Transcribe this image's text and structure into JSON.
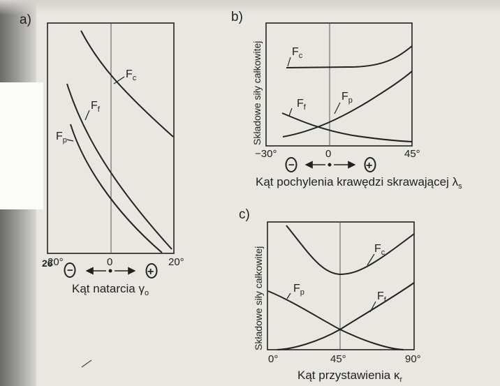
{
  "panels": {
    "a": {
      "label": "a)",
      "x_ticks": [
        "20°",
        "0",
        "20°"
      ],
      "x_tick_overprint": "26",
      "x_axis_label": "Kąt natarcia γ",
      "x_axis_label_sub": "o",
      "sign_minus": "−",
      "sign_plus": "+",
      "curves": [
        {
          "name": "F",
          "sub": "c"
        },
        {
          "name": "F",
          "sub": "f"
        },
        {
          "name": "F",
          "sub": "p"
        }
      ]
    },
    "b": {
      "label": "b)",
      "y_axis_label": "Składowe siły całkowitej",
      "x_ticks": [
        "−30°",
        "0",
        "45°"
      ],
      "x_axis_label": "Kąt pochylenia krawędzi skrawającej λ",
      "x_axis_label_sub": "s",
      "sign_minus": "−",
      "sign_plus": "+",
      "curves": [
        {
          "name": "F",
          "sub": "c"
        },
        {
          "name": "F",
          "sub": "f"
        },
        {
          "name": "F",
          "sub": "p"
        }
      ]
    },
    "c": {
      "label": "c)",
      "y_axis_label": "Składowe siły całkowitej",
      "x_ticks": [
        "0°",
        "45°",
        "90°"
      ],
      "x_axis_label": "Kąt przystawienia κ",
      "x_axis_label_sub": "r",
      "curves": [
        {
          "name": "F",
          "sub": "c"
        },
        {
          "name": "F",
          "sub": "p"
        },
        {
          "name": "F",
          "sub": "f"
        }
      ]
    }
  },
  "colors": {
    "ink": "#222222",
    "paper": "#e9e7e0"
  }
}
